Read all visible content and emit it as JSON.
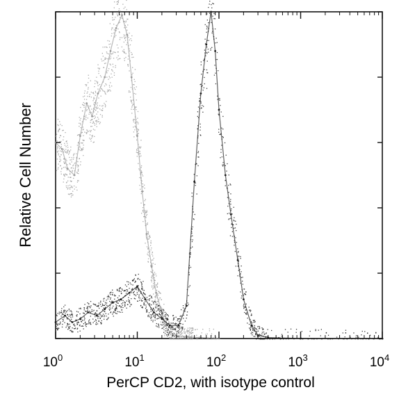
{
  "chart_data": {
    "type": "area",
    "title": "",
    "xlabel": "PerCP CD2, with isotype control",
    "ylabel": "Relative Cell Number",
    "x_scale": "log",
    "xlim": [
      1,
      10000
    ],
    "ylim": [
      0,
      100
    ],
    "x_ticks": [
      {
        "value": 1,
        "base": "10",
        "exp": "0"
      },
      {
        "value": 10,
        "base": "10",
        "exp": "1"
      },
      {
        "value": 100,
        "base": "10",
        "exp": "2"
      },
      {
        "value": 1000,
        "base": "10",
        "exp": "3"
      },
      {
        "value": 10000,
        "base": "10",
        "exp": "4"
      }
    ],
    "y_ticks": [
      0,
      20,
      40,
      60,
      80,
      100
    ],
    "series": [
      {
        "color": "#9a9a9a",
        "x": [
          1.0,
          1.2,
          1.4,
          1.7,
          2.0,
          2.4,
          2.8,
          3.3,
          4.0,
          4.7,
          5.5,
          6.5,
          7.5,
          8.5,
          10,
          11.5,
          13,
          15,
          17,
          20,
          22,
          25,
          30,
          40,
          60,
          100
        ],
        "y": [
          60,
          58,
          52,
          50,
          62,
          72,
          68,
          75,
          80,
          88,
          95,
          99,
          93,
          80,
          62,
          45,
          32,
          22,
          14,
          8,
          4,
          2,
          1,
          0.5,
          0.3,
          0
        ]
      },
      {
        "color": "#1a1a1a",
        "x": [
          1.0,
          1.3,
          1.6,
          2.0,
          2.5,
          3.2,
          4.0,
          5.0,
          6.3,
          8.0,
          10,
          12.5,
          16,
          20,
          25,
          32,
          40,
          50,
          60,
          70,
          80,
          90,
          100,
          120,
          140,
          170,
          200,
          250,
          300,
          400,
          1000,
          10000
        ],
        "y": [
          5,
          7,
          5,
          6,
          8,
          7,
          9,
          11,
          12,
          14,
          16,
          12,
          8,
          6,
          4,
          4,
          10,
          48,
          75,
          90,
          100,
          88,
          70,
          50,
          38,
          24,
          12,
          4,
          1,
          0.3,
          0,
          0
        ]
      }
    ],
    "grid": false,
    "legend": "none"
  }
}
